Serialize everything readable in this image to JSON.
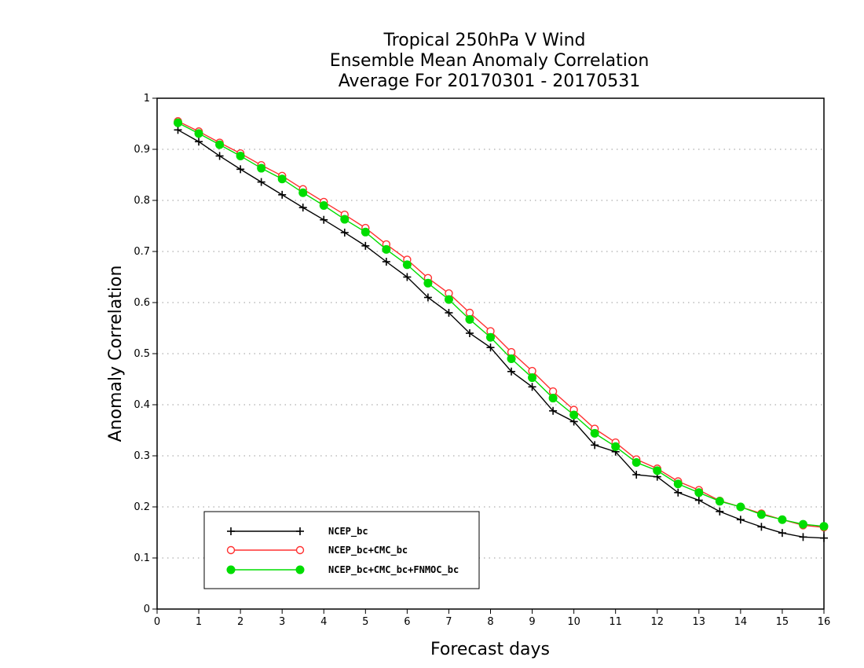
{
  "chart_data": {
    "type": "line",
    "title_lines": [
      "Tropical 250hPa V Wind",
      "Ensemble Mean Anomaly Correlation",
      "Average For 20170301 - 20170531"
    ],
    "xlabel": "Forecast days",
    "ylabel": "Anomaly Correlation",
    "xlim": [
      0,
      16
    ],
    "ylim": [
      0,
      1
    ],
    "x_ticks": [
      "0",
      "1",
      "2",
      "3",
      "4",
      "5",
      "6",
      "7",
      "8",
      "9",
      "10",
      "11",
      "12",
      "13",
      "14",
      "15",
      "16"
    ],
    "y_ticks": [
      "0",
      "0.1",
      "0.2",
      "0.3",
      "0.4",
      "0.5",
      "0.6",
      "0.7",
      "0.8",
      "0.9",
      "1"
    ],
    "grid": "horizontal dotted",
    "legend_position": "bottom-left",
    "x": [
      0.5,
      1,
      1.5,
      2,
      2.5,
      3,
      3.5,
      4,
      4.5,
      5,
      5.5,
      6,
      6.5,
      7,
      7.5,
      8,
      8.5,
      9,
      9.5,
      10,
      10.5,
      11,
      11.5,
      12,
      12.5,
      13,
      13.5,
      14,
      14.5,
      15,
      15.5,
      16
    ],
    "series": [
      {
        "name": "NCEP_bc",
        "color": "#000000",
        "marker": "plus",
        "values": [
          0.938,
          0.915,
          0.887,
          0.861,
          0.836,
          0.811,
          0.786,
          0.762,
          0.737,
          0.711,
          0.68,
          0.65,
          0.61,
          0.58,
          0.54,
          0.512,
          0.465,
          0.435,
          0.388,
          0.367,
          0.321,
          0.308,
          0.263,
          0.259,
          0.228,
          0.213,
          0.191,
          0.175,
          0.161,
          0.149,
          0.141,
          0.139
        ]
      },
      {
        "name": "NCEP_bc+CMC_bc",
        "color": "#ff3030",
        "marker": "open-circle",
        "values": [
          0.955,
          0.935,
          0.913,
          0.892,
          0.869,
          0.848,
          0.822,
          0.797,
          0.772,
          0.746,
          0.714,
          0.684,
          0.648,
          0.618,
          0.58,
          0.544,
          0.503,
          0.466,
          0.426,
          0.39,
          0.353,
          0.326,
          0.293,
          0.275,
          0.25,
          0.233,
          0.212,
          0.2,
          0.187,
          0.175,
          0.164,
          0.16
        ]
      },
      {
        "name": "NCEP_bc+CMC_bc+FNMOC_bc",
        "color": "#00dd00",
        "marker": "filled-circle",
        "values": [
          0.952,
          0.931,
          0.909,
          0.887,
          0.863,
          0.842,
          0.815,
          0.79,
          0.763,
          0.738,
          0.704,
          0.674,
          0.638,
          0.606,
          0.567,
          0.532,
          0.49,
          0.453,
          0.413,
          0.38,
          0.344,
          0.318,
          0.287,
          0.271,
          0.245,
          0.228,
          0.211,
          0.2,
          0.185,
          0.175,
          0.166,
          0.162
        ]
      }
    ]
  }
}
